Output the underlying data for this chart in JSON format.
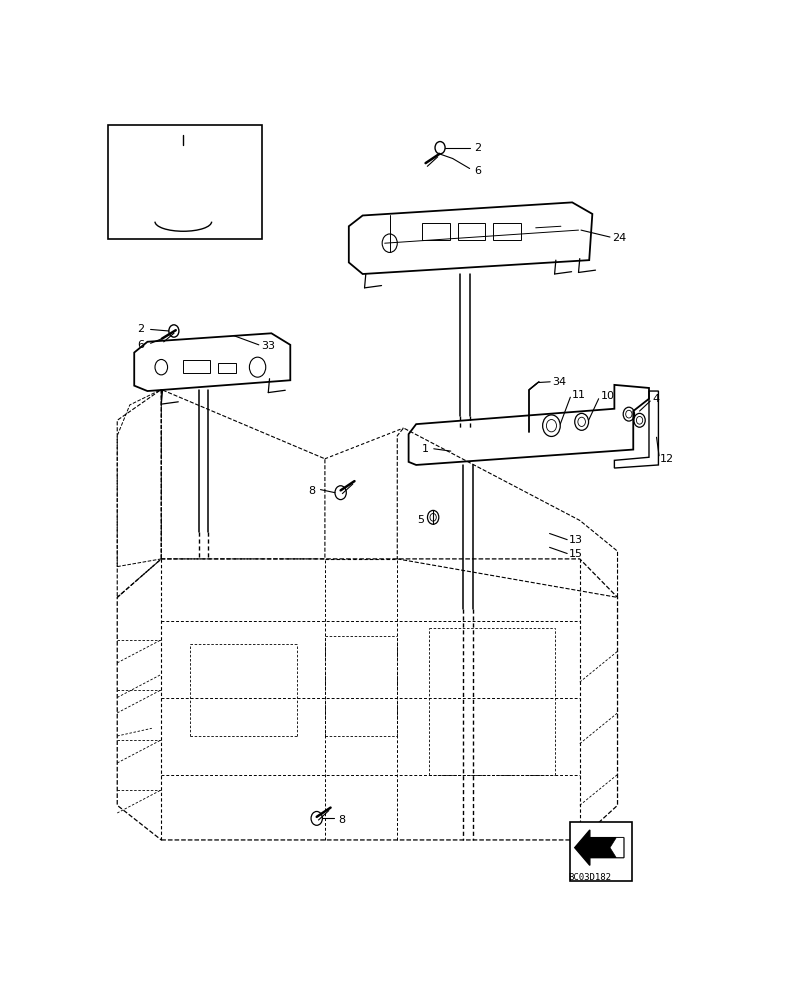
{
  "bg_color": "#ffffff",
  "line_color": "#000000",
  "figsize": [
    8.12,
    10.0
  ],
  "dpi": 100
}
